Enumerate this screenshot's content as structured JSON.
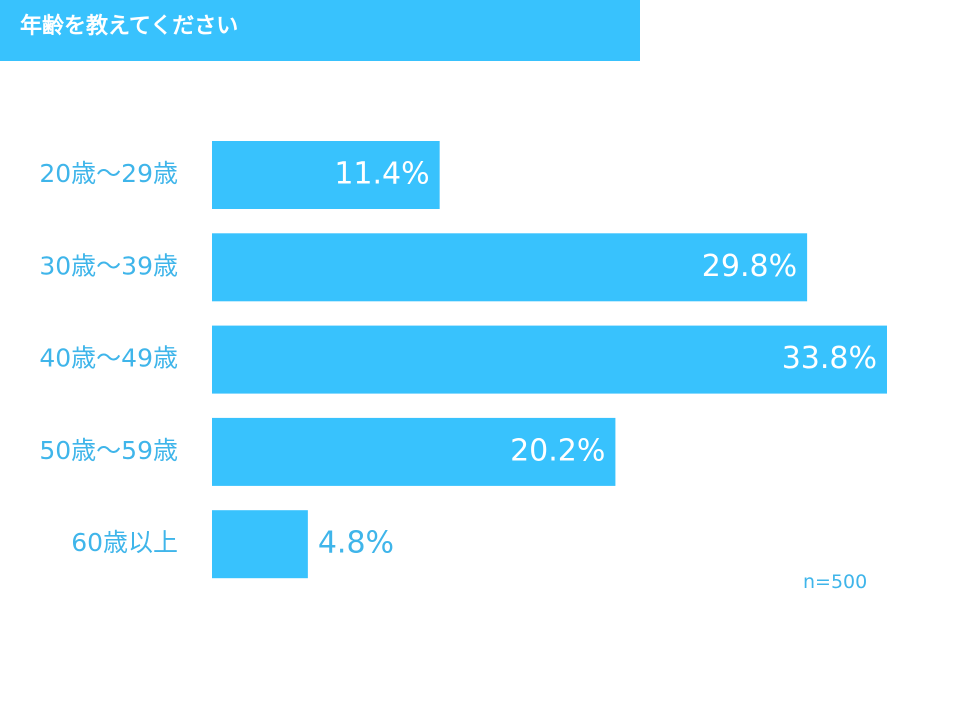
{
  "header": {
    "title": "年齢を教えてください",
    "background_color": "#38c2fd"
  },
  "chart_data": {
    "type": "bar",
    "orientation": "horizontal",
    "categories": [
      "20歳～29歳",
      "30歳～39歳",
      "40歳～49歳",
      "50歳～59歳",
      "60歳以上"
    ],
    "values": [
      11.4,
      29.8,
      33.8,
      20.2,
      4.8
    ],
    "value_labels": [
      "11.4%",
      "29.8%",
      "33.8%",
      "20.2%",
      "4.8%"
    ],
    "unit": "%",
    "bar_color": "#38c2fd",
    "label_color": "#3fb5ea",
    "grid": false,
    "legend": "none",
    "note": "n=500"
  }
}
